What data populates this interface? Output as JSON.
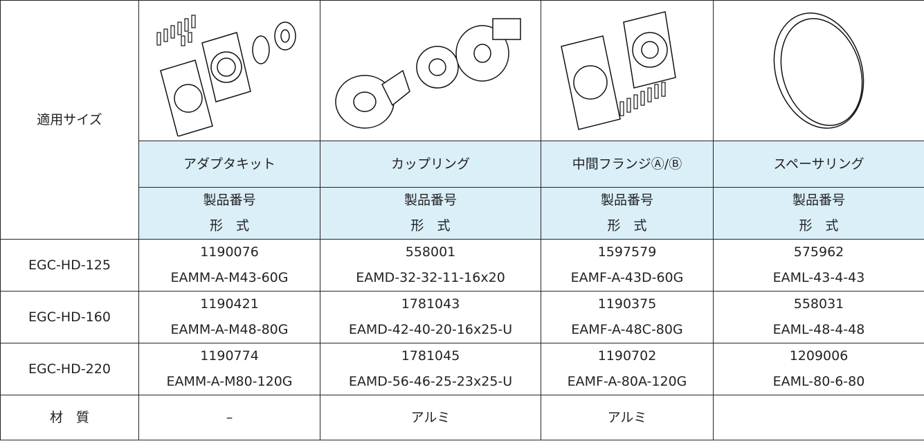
{
  "table": {
    "size_label": "適用サイズ",
    "columns": [
      {
        "name": "アダプタキット",
        "number_label": "製品番号",
        "model_label": "形　式"
      },
      {
        "name": "カップリング",
        "number_label": "製品番号",
        "model_label": "形　式"
      },
      {
        "name": "中間フランジⒶ/Ⓑ",
        "number_label": "製品番号",
        "model_label": "形　式"
      },
      {
        "name": "スペーサリング",
        "number_label": "製品番号",
        "model_label": "形　式"
      }
    ],
    "rows": [
      {
        "size": "EGC-HD-125",
        "items": [
          {
            "number": "1190076",
            "model": "EAMM-A-M43-60G"
          },
          {
            "number": "558001",
            "model": "EAMD-32-32-11-16x20"
          },
          {
            "number": "1597579",
            "model": "EAMF-A-43D-60G"
          },
          {
            "number": "575962",
            "model": "EAML-43-4-43"
          }
        ]
      },
      {
        "size": "EGC-HD-160",
        "items": [
          {
            "number": "1190421",
            "model": "EAMM-A-M48-80G"
          },
          {
            "number": "1781043",
            "model": "EAMD-42-40-20-16x25-U"
          },
          {
            "number": "1190375",
            "model": "EAMF-A-48C-80G"
          },
          {
            "number": "558031",
            "model": "EAML-48-4-48"
          }
        ]
      },
      {
        "size": "EGC-HD-220",
        "items": [
          {
            "number": "1190774",
            "model": "EAMM-A-M80-120G"
          },
          {
            "number": "1781045",
            "model": "EAMD-56-46-25-23x25-U"
          },
          {
            "number": "1190702",
            "model": "EAMF-A-80A-120G"
          },
          {
            "number": "1209006",
            "model": "EAML-80-6-80"
          }
        ]
      }
    ],
    "material": {
      "label": "材　質",
      "values": [
        "–",
        "アルミ",
        "アルミ"
      ]
    }
  }
}
